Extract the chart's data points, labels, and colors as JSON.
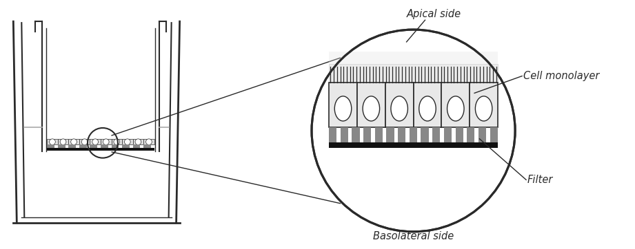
{
  "bg_color": "#ffffff",
  "line_color": "#2a2a2a",
  "gray_color": "#aaaaaa",
  "dark_gray": "#555555",
  "filter_dark": "#777777",
  "labels": {
    "apical": "Apical side",
    "monolayer": "Cell monolayer",
    "filter": "Filter",
    "basolateral": "Basolateral side"
  },
  "label_fontsize": 10.5,
  "num_cells": 6,
  "fig_width": 9.21,
  "fig_height": 3.62,
  "dpi": 100
}
